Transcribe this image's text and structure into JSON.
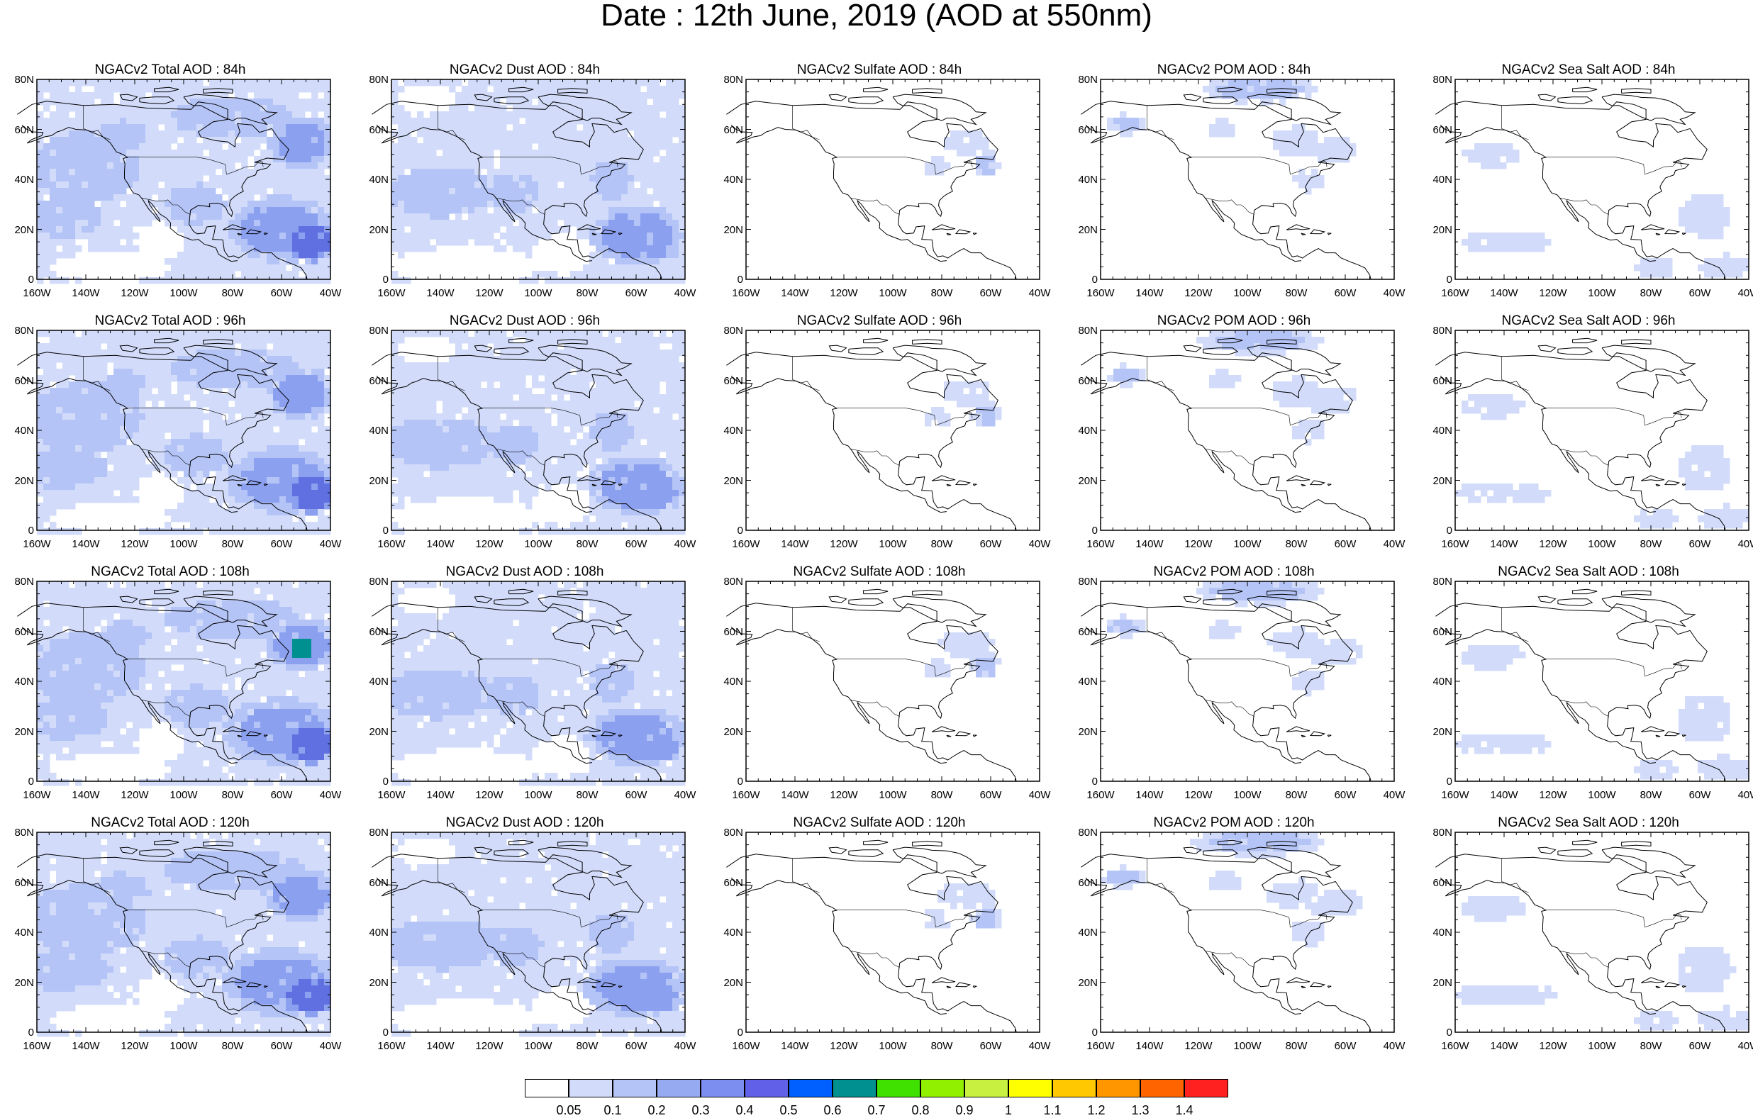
{
  "title": "Date : 12th June, 2019 (AOD at 550nm)",
  "axes": {
    "lat_labels": [
      "80N",
      "60N",
      "40N",
      "20N",
      "0"
    ],
    "lon_labels": [
      "160W",
      "140W",
      "120W",
      "100W",
      "80W",
      "60W",
      "40W"
    ]
  },
  "rows": [
    {
      "hour": "84h",
      "panels": [
        "NGACv2 Total AOD : 84h",
        "NGACv2 Dust AOD : 84h",
        "NGACv2 Sulfate AOD : 84h",
        "NGACv2 POM AOD : 84h",
        "NGACv2 Sea Salt AOD : 84h"
      ]
    },
    {
      "hour": "96h",
      "panels": [
        "NGACv2 Total AOD : 96h",
        "NGACv2 Dust AOD : 96h",
        "NGACv2 Sulfate AOD : 96h",
        "NGACv2 POM AOD : 96h",
        "NGACv2 Sea Salt AOD : 96h"
      ]
    },
    {
      "hour": "108h",
      "panels": [
        "NGACv2 Total AOD : 108h",
        "NGACv2 Dust AOD : 108h",
        "NGACv2 Sulfate AOD : 108h",
        "NGACv2 POM AOD : 108h",
        "NGACv2 Sea Salt AOD : 108h"
      ]
    },
    {
      "hour": "120h",
      "panels": [
        "NGACv2 Total AOD : 120h",
        "NGACv2 Dust AOD : 120h",
        "NGACv2 Sulfate AOD : 120h",
        "NGACv2 POM AOD : 120h",
        "NGACv2 Sea Salt  AOD : 120h"
      ]
    }
  ],
  "colorbar": {
    "labels": [
      "0.05",
      "0.1",
      "0.2",
      "0.3",
      "0.4",
      "0.5",
      "0.6",
      "0.7",
      "0.8",
      "0.9",
      "1",
      "1.1",
      "1.2",
      "1.3",
      "1.4"
    ],
    "colors": [
      "#ffffff",
      "#d2dcfa",
      "#b4c4f6",
      "#96aaf2",
      "#7c8ef0",
      "#6060e8",
      "#0060ff",
      "#009090",
      "#40e000",
      "#90f000",
      "#c8f040",
      "#ffff00",
      "#ffc800",
      "#ff9600",
      "#ff6400",
      "#ff2020"
    ]
  },
  "species_colors": {
    "background": "#ffffff",
    "light": "#d2dcfa",
    "medium": "#b4c4f6",
    "strong": "#8ca0f0",
    "peak": "#6070e0",
    "teal": "#009090",
    "coast": "#000000"
  }
}
